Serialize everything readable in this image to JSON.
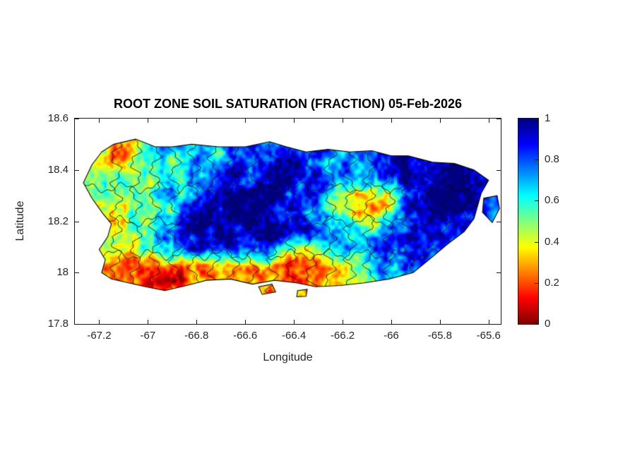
{
  "figure": {
    "title": "ROOT ZONE SOIL SATURATION (FRACTION) 05-Feb-2026",
    "xlabel": "Longitude",
    "ylabel": "Latitude"
  },
  "chart_data": {
    "type": "heatmap",
    "title": "ROOT ZONE SOIL SATURATION (FRACTION) 05-Feb-2026",
    "xlabel": "Longitude",
    "ylabel": "Latitude",
    "xlim": [
      -67.3,
      -65.55
    ],
    "ylim": [
      17.8,
      18.6
    ],
    "grid_on": false,
    "x_ticks": {
      "values": [
        -67.2,
        -67.0,
        -66.8,
        -66.6,
        -66.4,
        -66.2,
        -66.0,
        -65.8,
        -65.6
      ],
      "labels": [
        "-67.2",
        "-67",
        "-66.8",
        "-66.6",
        "-66.4",
        "-66.2",
        "-66",
        "-65.8",
        "-65.6"
      ]
    },
    "y_ticks": {
      "values": [
        18.6,
        18.4,
        18.2,
        18.0,
        17.8
      ],
      "labels": [
        "18.6",
        "18.4",
        "18.2",
        "18",
        "17.8"
      ]
    },
    "colorbar": {
      "position": "right",
      "colormap": "jet-reversed",
      "min": 0,
      "max": 1,
      "tick_values": [
        1,
        0.8,
        0.6,
        0.4,
        0.2,
        0
      ],
      "tick_labels": [
        "1",
        "0.8",
        "0.6",
        "0.4",
        "0.2",
        "0"
      ]
    },
    "grid": {
      "lon0": -67.215,
      "dlon": 0.0708,
      "lat0": 18.515,
      "dlat": 0.07,
      "ncols": 24,
      "nrows": 10,
      "values": [
        [
          0.5,
          0.3,
          0.25,
          0.5,
          0.7,
          0.8,
          0.6,
          0.7,
          0.8,
          0.85,
          0.7,
          0.8,
          0.85,
          0.9,
          0.8,
          0.85,
          0.9,
          0.85,
          0.9,
          0.95,
          0.9,
          0.9,
          0.9,
          0.9
        ],
        [
          0.45,
          0.25,
          0.35,
          0.6,
          0.55,
          0.65,
          0.75,
          0.6,
          0.85,
          0.9,
          0.75,
          0.85,
          0.9,
          0.8,
          0.7,
          0.8,
          0.85,
          0.9,
          0.95,
          1.0,
          0.95,
          0.95,
          0.9,
          0.9
        ],
        [
          0.55,
          0.5,
          0.6,
          0.45,
          0.55,
          0.6,
          0.65,
          0.7,
          0.9,
          0.85,
          0.9,
          0.95,
          0.9,
          0.85,
          0.75,
          0.7,
          0.8,
          0.85,
          0.95,
          1.0,
          1.0,
          0.95,
          0.95,
          0.9
        ],
        [
          0.5,
          0.55,
          0.5,
          0.6,
          0.65,
          0.7,
          0.8,
          0.9,
          0.95,
          1.0,
          0.95,
          0.9,
          0.85,
          0.8,
          0.6,
          0.45,
          0.35,
          0.5,
          0.9,
          1.0,
          1.0,
          1.0,
          0.95,
          0.9
        ],
        [
          0.45,
          0.4,
          0.55,
          0.5,
          0.6,
          0.7,
          0.9,
          0.95,
          1.0,
          1.0,
          0.95,
          0.9,
          0.8,
          0.7,
          0.5,
          0.3,
          0.25,
          0.45,
          0.85,
          0.95,
          1.0,
          0.95,
          0.9,
          0.85
        ],
        [
          0.5,
          0.45,
          0.5,
          0.6,
          0.8,
          0.9,
          0.95,
          1.0,
          1.0,
          0.95,
          1.0,
          0.95,
          0.9,
          0.8,
          0.7,
          0.6,
          0.55,
          0.7,
          0.9,
          0.95,
          0.9,
          0.85,
          0.8,
          0.8
        ],
        [
          0.4,
          0.35,
          0.45,
          0.55,
          0.7,
          0.85,
          0.9,
          0.95,
          0.9,
          0.85,
          0.9,
          0.7,
          0.5,
          0.6,
          0.7,
          0.75,
          0.8,
          0.85,
          0.9,
          0.85,
          0.8,
          0.75,
          0.75,
          0.75
        ],
        [
          0.35,
          0.3,
          0.25,
          0.3,
          0.2,
          0.25,
          0.3,
          0.35,
          0.3,
          0.35,
          0.3,
          0.2,
          0.15,
          0.3,
          0.4,
          0.5,
          0.6,
          0.7,
          0.8,
          0.75,
          0.7,
          0.7,
          0.7,
          0.7
        ],
        [
          0.3,
          0.2,
          0.15,
          0.2,
          0.15,
          0.2,
          0.25,
          0.2,
          0.25,
          0.3,
          0.25,
          0.2,
          0.25,
          0.35,
          0.45,
          0.55,
          0.6,
          0.65,
          0.6,
          0.6,
          0.6,
          0.6,
          0.6,
          0.6
        ],
        [
          0.5,
          0.45,
          0.4,
          0.4,
          0.35,
          0.35,
          0.4,
          0.4,
          0.4,
          0.4,
          0.4,
          0.4,
          0.4,
          0.45,
          0.5,
          0.55,
          0.55,
          0.55,
          0.55,
          0.55,
          0.55,
          0.55,
          0.55,
          0.55
        ]
      ]
    },
    "island_outline": [
      [
        -67.19,
        18.47
      ],
      [
        -67.14,
        18.5
      ],
      [
        -67.05,
        18.52
      ],
      [
        -66.97,
        18.49
      ],
      [
        -66.9,
        18.49
      ],
      [
        -66.82,
        18.5
      ],
      [
        -66.71,
        18.49
      ],
      [
        -66.6,
        18.49
      ],
      [
        -66.5,
        18.51
      ],
      [
        -66.43,
        18.49
      ],
      [
        -66.35,
        18.47
      ],
      [
        -66.26,
        18.48
      ],
      [
        -66.17,
        18.47
      ],
      [
        -66.08,
        18.475
      ],
      [
        -66.0,
        18.455
      ],
      [
        -65.93,
        18.455
      ],
      [
        -65.83,
        18.43
      ],
      [
        -65.74,
        18.425
      ],
      [
        -65.66,
        18.4
      ],
      [
        -65.6,
        18.36
      ],
      [
        -65.63,
        18.31
      ],
      [
        -65.645,
        18.26
      ],
      [
        -65.66,
        18.21
      ],
      [
        -65.7,
        18.16
      ],
      [
        -65.77,
        18.11
      ],
      [
        -65.845,
        18.05
      ],
      [
        -65.91,
        18.0
      ],
      [
        -66.01,
        17.975
      ],
      [
        -66.11,
        17.96
      ],
      [
        -66.21,
        17.95
      ],
      [
        -66.31,
        17.945
      ],
      [
        -66.39,
        17.96
      ],
      [
        -66.48,
        17.97
      ],
      [
        -66.57,
        17.955
      ],
      [
        -66.66,
        17.975
      ],
      [
        -66.76,
        17.97
      ],
      [
        -66.84,
        17.95
      ],
      [
        -66.93,
        17.93
      ],
      [
        -67.01,
        17.945
      ],
      [
        -67.08,
        17.96
      ],
      [
        -67.15,
        17.975
      ],
      [
        -67.19,
        18.0
      ],
      [
        -67.175,
        18.05
      ],
      [
        -67.2,
        18.09
      ],
      [
        -67.165,
        18.14
      ],
      [
        -67.15,
        18.19
      ],
      [
        -67.185,
        18.23
      ],
      [
        -67.23,
        18.29
      ],
      [
        -67.265,
        18.35
      ],
      [
        -67.23,
        18.42
      ]
    ],
    "islets": [
      [
        [
          -65.62,
          18.29
        ],
        [
          -65.565,
          18.3
        ],
        [
          -65.555,
          18.25
        ],
        [
          -65.585,
          18.195
        ],
        [
          -65.625,
          18.235
        ]
      ],
      [
        [
          -66.545,
          17.945
        ],
        [
          -66.49,
          17.955
        ],
        [
          -66.475,
          17.925
        ],
        [
          -66.53,
          17.915
        ]
      ],
      [
        [
          -66.385,
          17.93
        ],
        [
          -66.345,
          17.935
        ],
        [
          -66.35,
          17.908
        ],
        [
          -66.388,
          17.906
        ]
      ]
    ],
    "boundaries": {
      "lons": [
        -67.13,
        -67.05,
        -66.97,
        -66.89,
        -66.81,
        -66.73,
        -66.65,
        -66.57,
        -66.49,
        -66.41,
        -66.33,
        -66.25,
        -66.17,
        -66.09,
        -66.01,
        -65.93,
        -65.85,
        -65.77,
        -65.69
      ],
      "lats": [
        18.33,
        18.2,
        18.07
      ]
    }
  }
}
